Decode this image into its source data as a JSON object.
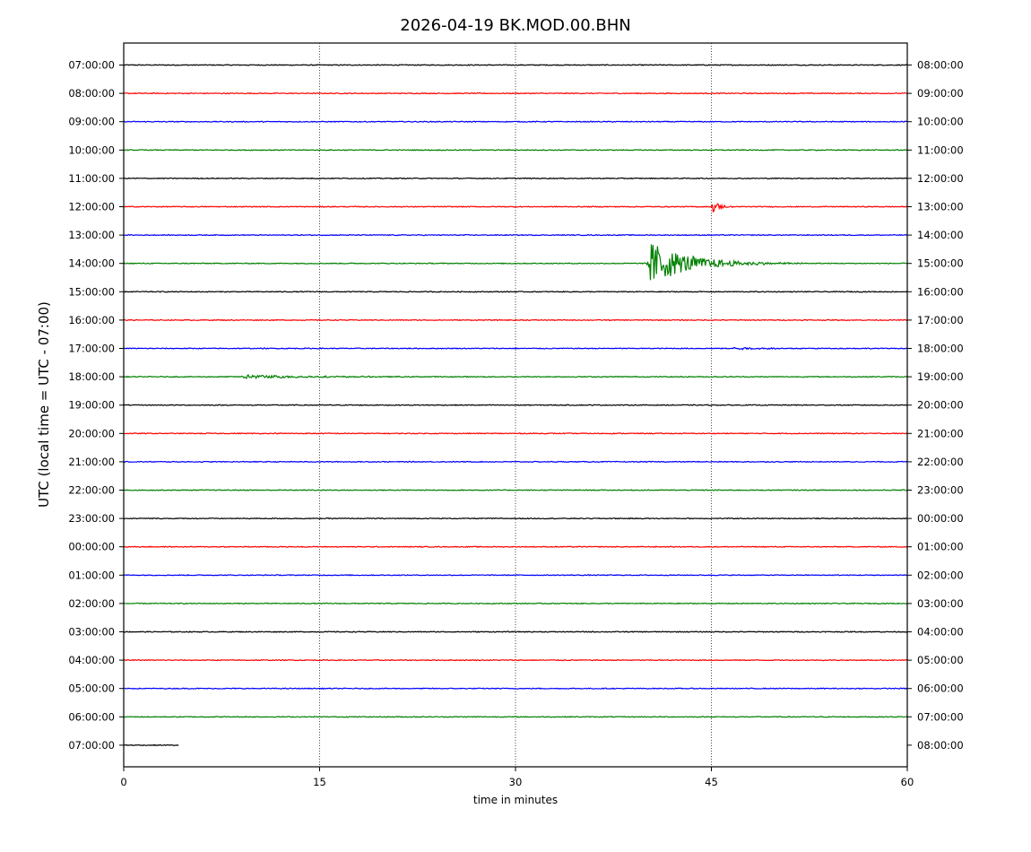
{
  "chart_data": {
    "type": "line",
    "title": "2026-04-19 BK.MOD.00.BHN",
    "xlabel": "time in minutes",
    "ylabel": "UTC (local time = UTC - 07:00)",
    "xlim": [
      0,
      60
    ],
    "x_ticks": [
      "0",
      "15",
      "30",
      "45",
      "60"
    ],
    "x_tick_values": [
      0,
      15,
      30,
      45,
      60
    ],
    "grid": "vertical dotted at 15, 30, 45",
    "trace_colors": [
      "#000000",
      "#ff0000",
      "#0000ff",
      "#008000"
    ],
    "rows": [
      {
        "left": "07:00:00",
        "right": "08:00:00"
      },
      {
        "left": "08:00:00",
        "right": "09:00:00"
      },
      {
        "left": "09:00:00",
        "right": "10:00:00"
      },
      {
        "left": "10:00:00",
        "right": "11:00:00"
      },
      {
        "left": "11:00:00",
        "right": "12:00:00"
      },
      {
        "left": "12:00:00",
        "right": "13:00:00"
      },
      {
        "left": "13:00:00",
        "right": "14:00:00"
      },
      {
        "left": "14:00:00",
        "right": "15:00:00"
      },
      {
        "left": "15:00:00",
        "right": "16:00:00"
      },
      {
        "left": "16:00:00",
        "right": "17:00:00"
      },
      {
        "left": "17:00:00",
        "right": "18:00:00"
      },
      {
        "left": "18:00:00",
        "right": "19:00:00"
      },
      {
        "left": "19:00:00",
        "right": "20:00:00"
      },
      {
        "left": "20:00:00",
        "right": "21:00:00"
      },
      {
        "left": "21:00:00",
        "right": "22:00:00"
      },
      {
        "left": "22:00:00",
        "right": "23:00:00"
      },
      {
        "left": "23:00:00",
        "right": "00:00:00"
      },
      {
        "left": "00:00:00",
        "right": "01:00:00"
      },
      {
        "left": "01:00:00",
        "right": "02:00:00"
      },
      {
        "left": "02:00:00",
        "right": "03:00:00"
      },
      {
        "left": "03:00:00",
        "right": "04:00:00"
      },
      {
        "left": "04:00:00",
        "right": "05:00:00"
      },
      {
        "left": "05:00:00",
        "right": "06:00:00"
      },
      {
        "left": "06:00:00",
        "right": "07:00:00"
      },
      {
        "left": "07:00:00",
        "right": "08:00:00",
        "end_minute": 4.2
      }
    ],
    "events": [
      {
        "row": 5,
        "start_minute": 45.0,
        "duration_minutes": 2.5,
        "peak_amplitude": 0.7
      },
      {
        "row": 7,
        "start_minute": 40.0,
        "duration_minutes": 13.0,
        "peak_amplitude": 2.3
      },
      {
        "row": 10,
        "start_minute": 46.5,
        "duration_minutes": 13.5,
        "peak_amplitude": 0.12
      },
      {
        "row": 11,
        "start_minute": 9.0,
        "duration_minutes": 22.0,
        "peak_amplitude": 0.2
      }
    ]
  }
}
